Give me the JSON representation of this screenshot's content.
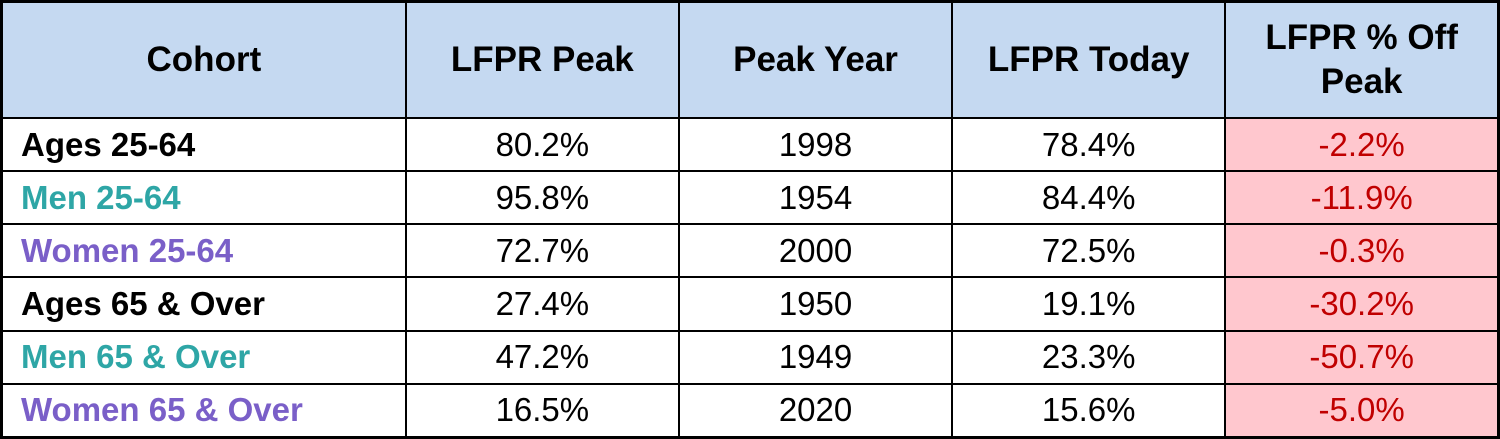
{
  "table": {
    "header": [
      "Cohort",
      "LFPR Peak",
      "Peak Year",
      "LFPR Today",
      "LFPR % Off Peak"
    ],
    "rows": [
      [
        "Ages 25-64",
        "80.2%",
        "1998",
        "78.4%",
        "-2.2%"
      ],
      [
        "Men 25-64",
        "95.8%",
        "1954",
        "84.4%",
        "-11.9%"
      ],
      [
        "Women 25-64",
        "72.7%",
        "2000",
        "72.5%",
        "-0.3%"
      ],
      [
        "Ages 65 & Over",
        "27.4%",
        "1950",
        "19.1%",
        "-30.2%"
      ],
      [
        "Men 65 & Over",
        "47.2%",
        "1949",
        "23.3%",
        "-50.7%"
      ],
      [
        "Women 65 & Over",
        "16.5%",
        "2020",
        "15.6%",
        "-5.0%"
      ]
    ]
  }
}
